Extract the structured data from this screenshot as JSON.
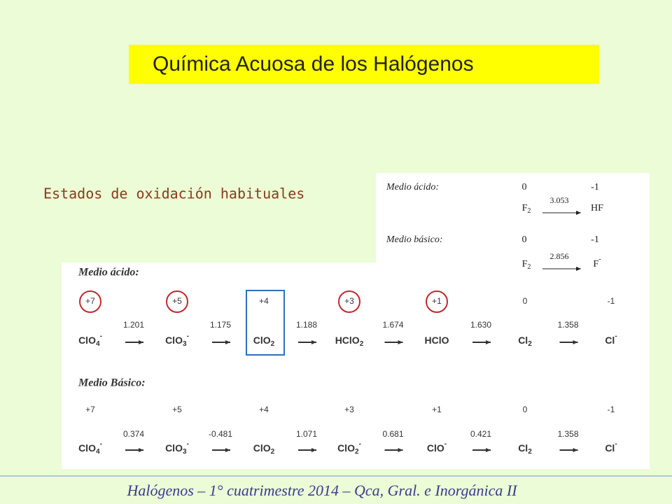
{
  "title": "Química Acuosa de los Halógenos",
  "subtitle": "Estados de oxidación habituales",
  "fluorine": {
    "acid": {
      "label": "Medio ácido:",
      "states": [
        "0",
        "-1"
      ],
      "species": [
        {
          "text": "F",
          "sub": "2"
        },
        {
          "text": "HF"
        }
      ],
      "potential": "3.053"
    },
    "basic": {
      "label": "Medio básico:",
      "states": [
        "0",
        "-1"
      ],
      "species": [
        {
          "text": "F",
          "sub": "2"
        },
        {
          "text": "F",
          "sup": "-"
        }
      ],
      "potential": "2.856"
    }
  },
  "chlorine": {
    "acid": {
      "label": "Medio ácido:",
      "states": [
        "+7",
        "+5",
        "+4",
        "+3",
        "+1",
        "0",
        "-1"
      ],
      "species": [
        {
          "text": "ClO",
          "sub": "4",
          "sup": "-"
        },
        {
          "text": "ClO",
          "sub": "3",
          "sup": "-"
        },
        {
          "text": "ClO",
          "sub": "2"
        },
        {
          "text": "HClO",
          "sub": "2"
        },
        {
          "text": "HClO"
        },
        {
          "text": "Cl",
          "sub": "2"
        },
        {
          "text": "Cl",
          "sup": "-"
        }
      ],
      "potentials": [
        "1.201",
        "1.175",
        "1.188",
        "1.674",
        "1.630",
        "1.358"
      ]
    },
    "basic": {
      "label": "Medio Básico:",
      "states": [
        "+7",
        "+5",
        "+4",
        "+3",
        "+1",
        "0",
        "-1"
      ],
      "species": [
        {
          "text": "ClO",
          "sub": "4",
          "sup": "-"
        },
        {
          "text": "ClO",
          "sub": "3",
          "sup": "-"
        },
        {
          "text": "ClO",
          "sub": "2"
        },
        {
          "text": "ClO",
          "sub": "2",
          "sup": "-"
        },
        {
          "text": "ClO",
          "sup": "-"
        },
        {
          "text": "Cl",
          "sub": "2"
        },
        {
          "text": "Cl",
          "sup": "-"
        }
      ],
      "potentials": [
        "0.374",
        "-0.481",
        "1.071",
        "0.681",
        "0.421",
        "1.358"
      ]
    }
  },
  "footer": "Halógenos – 1° cuatrimestre 2014 – Qca, Gral. e Inorgánica II"
}
